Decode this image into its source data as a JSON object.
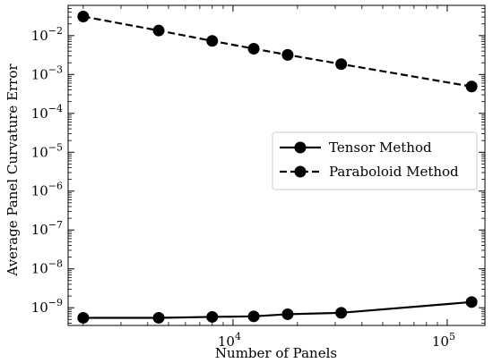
{
  "chart_data": {
    "type": "line",
    "title": "",
    "xlabel": "Number of Panels",
    "ylabel": "Average Panel Curvature Error",
    "xscale": "log",
    "yscale": "log",
    "xlim": [
      1700,
      150000
    ],
    "ylim": [
      3.5e-10,
      0.06
    ],
    "x_major_ticks": [
      {
        "value": 10000,
        "base": "10",
        "exp": "4"
      },
      {
        "value": 100000,
        "base": "10",
        "exp": "5"
      }
    ],
    "y_major_ticks": [
      {
        "value": 1e-09,
        "base": "10",
        "exp": "−9"
      },
      {
        "value": 1e-08,
        "base": "10",
        "exp": "−8"
      },
      {
        "value": 1e-07,
        "base": "10",
        "exp": "−7"
      },
      {
        "value": 1e-06,
        "base": "10",
        "exp": "−6"
      },
      {
        "value": 1e-05,
        "base": "10",
        "exp": "−5"
      },
      {
        "value": 0.0001,
        "base": "10",
        "exp": "−4"
      },
      {
        "value": 0.001,
        "base": "10",
        "exp": "−3"
      },
      {
        "value": 0.01,
        "base": "10",
        "exp": "−2"
      }
    ],
    "legend": {
      "position": "center-right"
    },
    "grid": false,
    "series": [
      {
        "name": "Tensor Method",
        "line_style": "solid",
        "marker": "circle",
        "color": "#000000",
        "x": [
          2000,
          4500,
          8000,
          12500,
          18000,
          32000,
          130000
        ],
        "y": [
          5.5e-10,
          5.5e-10,
          5.8e-10,
          6e-10,
          6.8e-10,
          7.4e-10,
          1.4e-09
        ]
      },
      {
        "name": "Paraboloid Method",
        "line_style": "dashed",
        "marker": "circle",
        "color": "#000000",
        "x": [
          2000,
          4500,
          8000,
          12500,
          18000,
          32000,
          130000
        ],
        "y": [
          0.031,
          0.0135,
          0.0073,
          0.0046,
          0.0032,
          0.00185,
          0.00049
        ]
      }
    ]
  }
}
